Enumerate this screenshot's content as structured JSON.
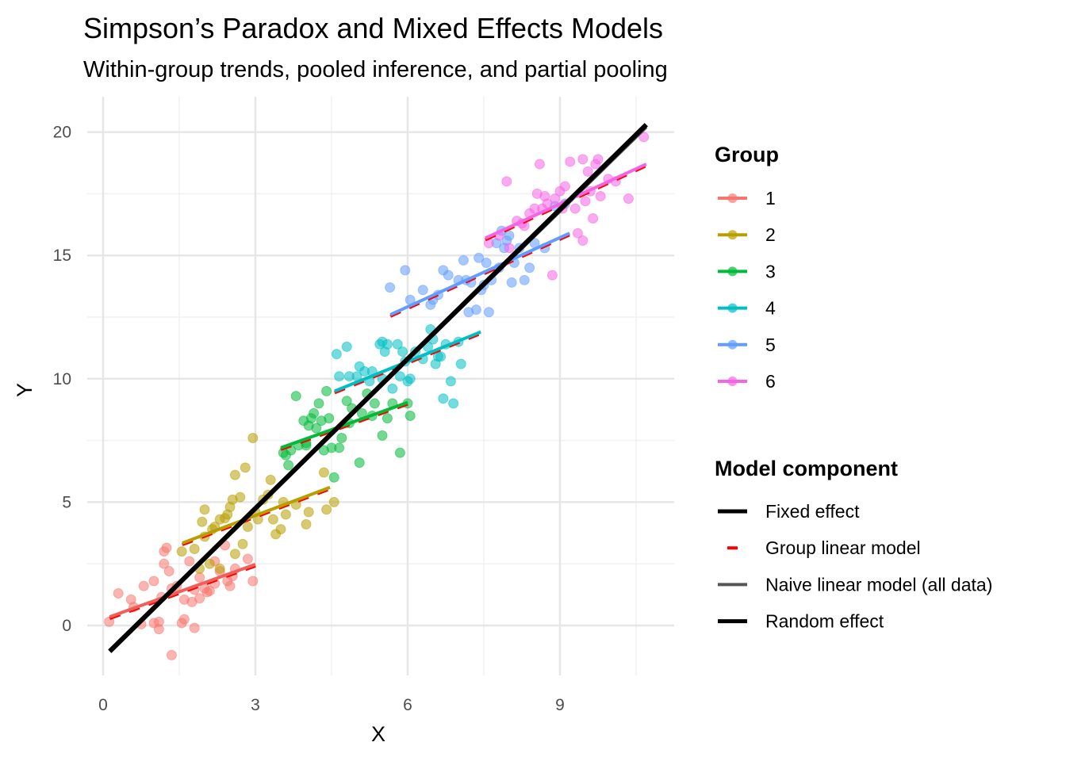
{
  "chart_data": {
    "type": "scatter",
    "title": "Simpson’s Paradox and Mixed Effects Models",
    "subtitle": "Within-group trends, pooled inference, and partial pooling",
    "xlabel": "X",
    "ylabel": "Y",
    "xlim": [
      -0.4,
      11.1
    ],
    "ylim": [
      -2.3,
      21.4
    ],
    "xticks": [
      "0",
      "3",
      "6",
      "9"
    ],
    "yticks": [
      "0",
      "5",
      "10",
      "15",
      "20"
    ],
    "grid": true,
    "legend_position": "right",
    "legend_group_title": "Group",
    "legend_model_title": "Model component",
    "model_components": [
      {
        "name": "Fixed effect",
        "color": "#000000",
        "style": "solid"
      },
      {
        "name": "Group linear model",
        "color": "#FF0000",
        "style": "dashed"
      },
      {
        "name": "Naive linear model (all data)",
        "color": "#555555",
        "style": "solid"
      },
      {
        "name": "Random effect",
        "color": "#000000",
        "style": "solid"
      }
    ],
    "fixed_effect_line": {
      "x": [
        0.13,
        10.7
      ],
      "y": [
        -1.05,
        20.3
      ]
    },
    "naive_line": {
      "x": [
        0.13,
        10.7
      ],
      "y": [
        -1.0,
        20.2
      ]
    },
    "groups": [
      {
        "name": "1",
        "color": "#F8766D",
        "line": {
          "x": [
            0.13,
            3.0
          ],
          "y": [
            0.35,
            2.48
          ]
        },
        "points": [
          [
            0.12,
            0.15
          ],
          [
            0.3,
            1.3
          ],
          [
            0.55,
            1.05
          ],
          [
            0.6,
            0.75
          ],
          [
            0.75,
            0.05
          ],
          [
            0.8,
            1.6
          ],
          [
            1.0,
            1.8
          ],
          [
            1.0,
            0.1
          ],
          [
            1.1,
            0.15
          ],
          [
            1.1,
            -0.15
          ],
          [
            1.15,
            1.15
          ],
          [
            1.2,
            3.0
          ],
          [
            1.25,
            3.15
          ],
          [
            1.2,
            2.5
          ],
          [
            1.3,
            2.2
          ],
          [
            1.35,
            1.5
          ],
          [
            1.45,
            1.6
          ],
          [
            1.35,
            -1.2
          ],
          [
            1.55,
            0.1
          ],
          [
            1.6,
            0.25
          ],
          [
            1.6,
            1.05
          ],
          [
            1.7,
            2.6
          ],
          [
            1.75,
            0.95
          ],
          [
            1.8,
            1.45
          ],
          [
            1.8,
            -0.1
          ],
          [
            1.9,
            1.95
          ],
          [
            2.0,
            1.5
          ],
          [
            2.05,
            1.35
          ],
          [
            2.1,
            1.4
          ],
          [
            2.2,
            2.6
          ],
          [
            2.3,
            2.2
          ],
          [
            2.4,
            3.25
          ],
          [
            2.45,
            1.8
          ],
          [
            2.55,
            2.0
          ],
          [
            2.6,
            2.3
          ],
          [
            2.85,
            2.7
          ],
          [
            2.95,
            1.8
          ],
          [
            2.5,
            1.6
          ],
          [
            2.2,
            1.7
          ],
          [
            1.9,
            1.1
          ]
        ]
      },
      {
        "name": "2",
        "color": "#B79F00",
        "line": {
          "x": [
            1.56,
            4.47
          ],
          "y": [
            3.34,
            5.6
          ]
        },
        "points": [
          [
            1.55,
            3.0
          ],
          [
            1.8,
            3.1
          ],
          [
            1.9,
            2.3
          ],
          [
            1.95,
            4.2
          ],
          [
            2.0,
            4.7
          ],
          [
            2.0,
            3.6
          ],
          [
            2.1,
            2.5
          ],
          [
            2.2,
            4.0
          ],
          [
            2.3,
            4.3
          ],
          [
            2.4,
            4.35
          ],
          [
            2.45,
            4.5
          ],
          [
            2.5,
            4.8
          ],
          [
            2.55,
            5.1
          ],
          [
            2.6,
            2.9
          ],
          [
            2.6,
            6.1
          ],
          [
            2.7,
            5.2
          ],
          [
            2.75,
            3.3
          ],
          [
            2.8,
            6.4
          ],
          [
            2.85,
            4.0
          ],
          [
            2.95,
            7.6
          ],
          [
            3.0,
            4.6
          ],
          [
            3.05,
            4.3
          ],
          [
            3.15,
            5.1
          ],
          [
            3.3,
            5.9
          ],
          [
            3.35,
            4.3
          ],
          [
            3.4,
            3.7
          ],
          [
            3.5,
            3.9
          ],
          [
            3.55,
            5.0
          ],
          [
            3.6,
            4.5
          ],
          [
            3.8,
            4.9
          ],
          [
            4.0,
            4.1
          ],
          [
            4.05,
            4.6
          ],
          [
            4.35,
            6.2
          ],
          [
            4.4,
            4.7
          ],
          [
            4.55,
            5.0
          ],
          [
            3.25,
            5.3
          ],
          [
            2.3,
            2.3
          ],
          [
            2.15,
            3.9
          ]
        ]
      },
      {
        "name": "3",
        "color": "#00BA38",
        "line": {
          "x": [
            3.5,
            6.0
          ],
          "y": [
            7.2,
            9.04
          ]
        },
        "points": [
          [
            3.55,
            7.0
          ],
          [
            3.65,
            6.5
          ],
          [
            3.7,
            7.1
          ],
          [
            3.8,
            9.3
          ],
          [
            3.85,
            7.3
          ],
          [
            3.95,
            8.3
          ],
          [
            4.0,
            7.3
          ],
          [
            4.05,
            8.1
          ],
          [
            4.1,
            8.4
          ],
          [
            4.15,
            8.6
          ],
          [
            4.2,
            8.0
          ],
          [
            4.25,
            9.0
          ],
          [
            4.3,
            8.3
          ],
          [
            4.35,
            7.1
          ],
          [
            4.4,
            9.5
          ],
          [
            4.45,
            8.4
          ],
          [
            4.5,
            7.2
          ],
          [
            4.55,
            6.0
          ],
          [
            4.65,
            7.2
          ],
          [
            4.7,
            7.6
          ],
          [
            4.8,
            9.1
          ],
          [
            4.85,
            8.2
          ],
          [
            4.9,
            8.8
          ],
          [
            5.05,
            6.6
          ],
          [
            5.1,
            8.6
          ],
          [
            5.3,
            8.5
          ],
          [
            5.35,
            9.0
          ],
          [
            5.5,
            7.7
          ],
          [
            5.6,
            8.4
          ],
          [
            5.7,
            9.0
          ],
          [
            5.85,
            7.0
          ],
          [
            6.0,
            9.0
          ],
          [
            6.05,
            8.5
          ],
          [
            5.2,
            9.4
          ],
          [
            4.0,
            7.4
          ],
          [
            3.6,
            6.9
          ]
        ]
      },
      {
        "name": "4",
        "color": "#00BFC4",
        "line": {
          "x": [
            4.56,
            7.44
          ],
          "y": [
            9.5,
            11.9
          ]
        },
        "points": [
          [
            4.6,
            11.0
          ],
          [
            4.65,
            10.1
          ],
          [
            4.8,
            11.3
          ],
          [
            4.85,
            10.1
          ],
          [
            5.0,
            10.1
          ],
          [
            5.05,
            10.5
          ],
          [
            5.15,
            10.3
          ],
          [
            5.25,
            9.9
          ],
          [
            5.3,
            10.3
          ],
          [
            5.45,
            11.4
          ],
          [
            5.5,
            11.5
          ],
          [
            5.55,
            11.1
          ],
          [
            5.6,
            11.4
          ],
          [
            5.7,
            9.6
          ],
          [
            5.8,
            11.4
          ],
          [
            5.85,
            10.1
          ],
          [
            5.9,
            11.1
          ],
          [
            5.95,
            10.7
          ],
          [
            6.0,
            9.9
          ],
          [
            6.05,
            10.0
          ],
          [
            6.15,
            11.1
          ],
          [
            6.3,
            10.8
          ],
          [
            6.4,
            11.3
          ],
          [
            6.45,
            12.0
          ],
          [
            6.5,
            11.6
          ],
          [
            6.6,
            10.9
          ],
          [
            6.65,
            10.9
          ],
          [
            6.7,
            9.2
          ],
          [
            6.75,
            11.4
          ],
          [
            6.85,
            9.9
          ],
          [
            6.9,
            9.0
          ],
          [
            7.0,
            11.5
          ],
          [
            7.05,
            10.6
          ],
          [
            5.5,
            10.0
          ],
          [
            6.55,
            10.6
          ]
        ]
      },
      {
        "name": "5",
        "color": "#619CFF",
        "line": {
          "x": [
            5.66,
            9.19
          ],
          "y": [
            12.6,
            15.9
          ]
        },
        "points": [
          [
            5.65,
            13.7
          ],
          [
            5.95,
            14.4
          ],
          [
            6.05,
            13.2
          ],
          [
            6.3,
            13.6
          ],
          [
            6.45,
            13.0
          ],
          [
            6.5,
            13.2
          ],
          [
            6.7,
            14.4
          ],
          [
            6.8,
            14.2
          ],
          [
            7.0,
            14.0
          ],
          [
            7.1,
            14.8
          ],
          [
            7.2,
            12.7
          ],
          [
            7.25,
            13.9
          ],
          [
            7.35,
            12.8
          ],
          [
            7.4,
            14.9
          ],
          [
            7.45,
            13.6
          ],
          [
            7.5,
            13.8
          ],
          [
            7.55,
            14.7
          ],
          [
            7.6,
            12.7
          ],
          [
            7.65,
            14.0
          ],
          [
            7.75,
            15.5
          ],
          [
            7.8,
            14.5
          ],
          [
            7.85,
            16.0
          ],
          [
            7.9,
            15.3
          ],
          [
            7.95,
            15.6
          ],
          [
            8.05,
            13.9
          ],
          [
            8.1,
            14.7
          ],
          [
            8.2,
            15.3
          ],
          [
            8.3,
            14.0
          ],
          [
            8.4,
            14.5
          ],
          [
            8.5,
            15.5
          ],
          [
            8.7,
            15.3
          ],
          [
            8.9,
            17.0
          ],
          [
            9.1,
            17.1
          ],
          [
            7.15,
            14.0
          ],
          [
            8.0,
            15.8
          ],
          [
            6.6,
            13.4
          ]
        ]
      },
      {
        "name": "6",
        "color": "#F564E3",
        "line": {
          "x": [
            7.53,
            10.7
          ],
          "y": [
            15.7,
            18.7
          ]
        },
        "points": [
          [
            7.6,
            15.5
          ],
          [
            7.8,
            15.8
          ],
          [
            7.95,
            18.0
          ],
          [
            8.0,
            15.3
          ],
          [
            8.15,
            16.4
          ],
          [
            8.25,
            16.3
          ],
          [
            8.4,
            16.7
          ],
          [
            8.5,
            16.9
          ],
          [
            8.55,
            17.5
          ],
          [
            8.6,
            18.7
          ],
          [
            8.65,
            16.9
          ],
          [
            8.7,
            17.4
          ],
          [
            8.75,
            17.1
          ],
          [
            8.85,
            14.2
          ],
          [
            8.9,
            17.3
          ],
          [
            9.0,
            17.6
          ],
          [
            9.1,
            17.8
          ],
          [
            9.2,
            18.8
          ],
          [
            9.3,
            16.9
          ],
          [
            9.35,
            15.9
          ],
          [
            9.45,
            18.9
          ],
          [
            9.5,
            17.2
          ],
          [
            9.55,
            18.4
          ],
          [
            9.6,
            17.6
          ],
          [
            9.65,
            16.5
          ],
          [
            9.7,
            18.7
          ],
          [
            9.75,
            18.9
          ],
          [
            9.8,
            17.4
          ],
          [
            9.95,
            18.1
          ],
          [
            10.1,
            18.0
          ],
          [
            10.35,
            17.3
          ],
          [
            10.65,
            19.8
          ],
          [
            9.45,
            15.6
          ],
          [
            8.3,
            16.2
          ],
          [
            9.05,
            16.9
          ]
        ]
      }
    ]
  }
}
